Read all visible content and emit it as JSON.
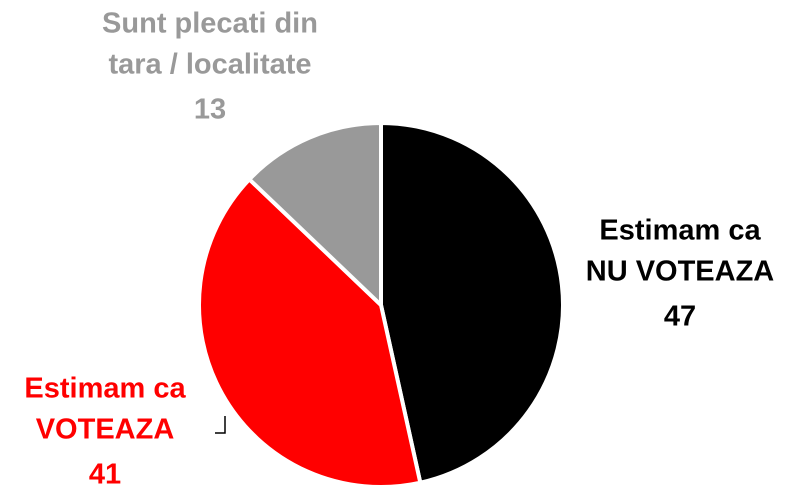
{
  "chart_data": {
    "type": "pie",
    "categories": [
      [
        "Estimam ca",
        "NU VOTEAZA"
      ],
      [
        "Estimam ca",
        "VOTEAZA"
      ],
      [
        "Sunt plecati din",
        "tara / localitate"
      ]
    ],
    "values": [
      47,
      41,
      13
    ],
    "colors": [
      "#000000",
      "#ff0000",
      "#999999"
    ]
  }
}
